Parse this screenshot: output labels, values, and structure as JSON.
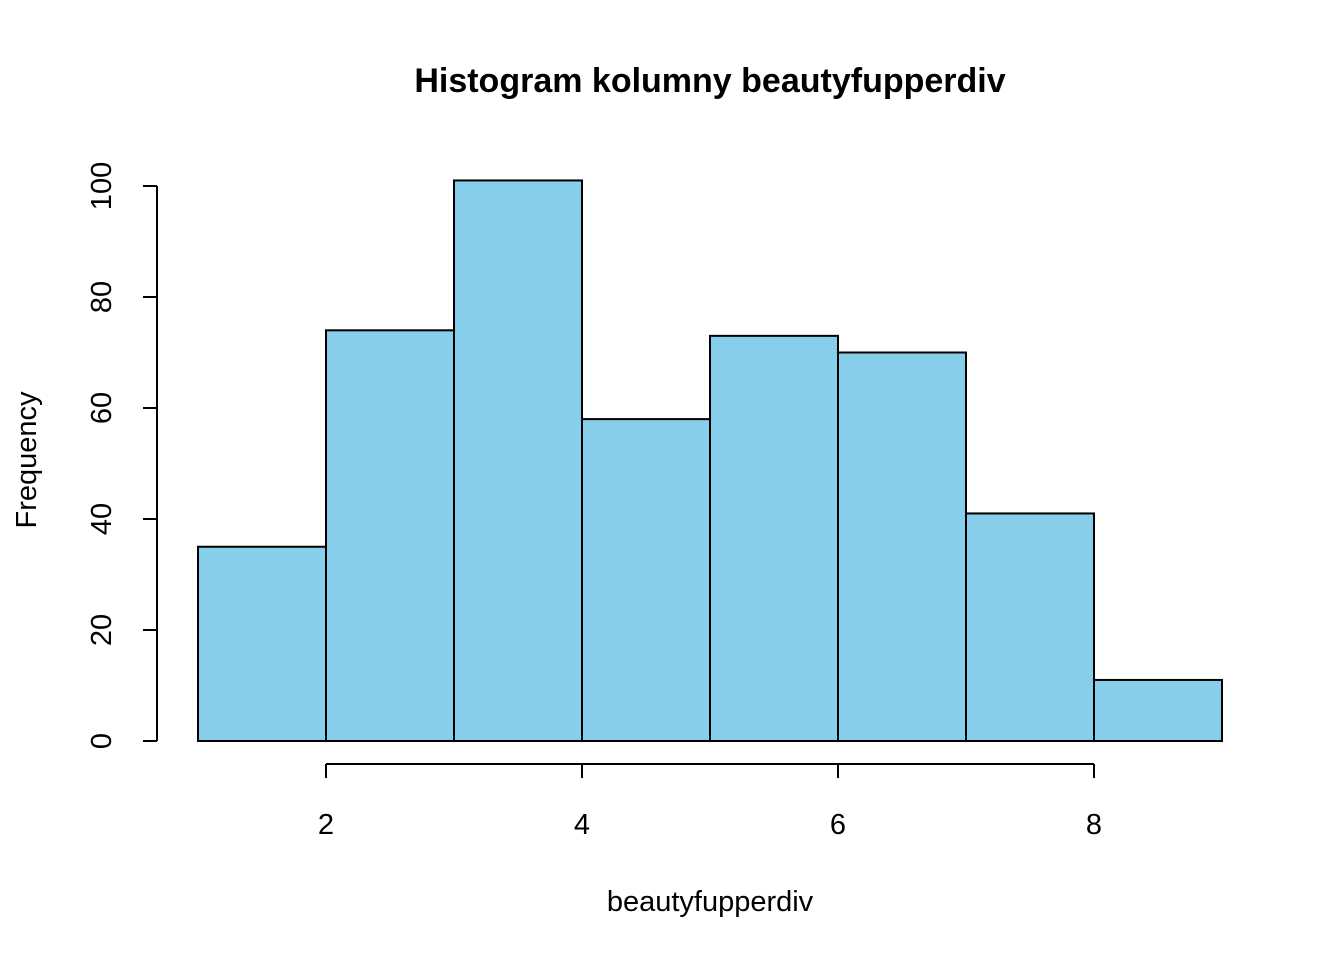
{
  "chart_data": {
    "type": "bar",
    "title": "Histogram kolumny beautyfupperdiv",
    "xlabel": "beautyfupperdiv",
    "ylabel": "Frequency",
    "bin_edges": [
      1,
      2,
      3,
      4,
      5,
      6,
      7,
      8,
      9
    ],
    "values": [
      35,
      74,
      101,
      58,
      73,
      70,
      41,
      11
    ],
    "xlim": [
      1,
      9
    ],
    "ylim": [
      0,
      100
    ],
    "x_ticks": [
      2,
      4,
      6,
      8
    ],
    "y_ticks": [
      0,
      20,
      40,
      60,
      80,
      100
    ],
    "bar_color": "#87CEEB",
    "grid": false
  }
}
